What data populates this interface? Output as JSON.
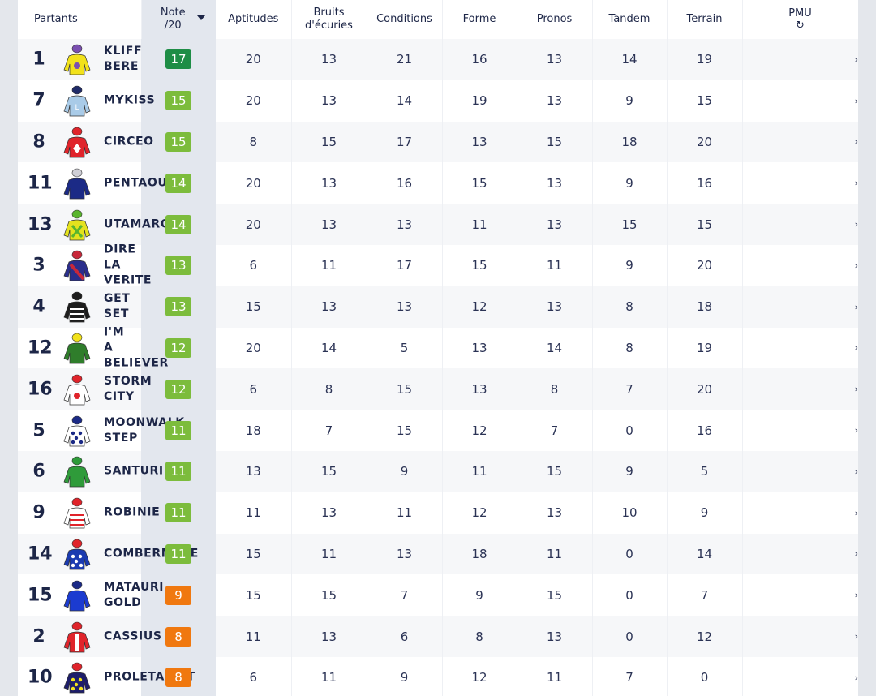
{
  "headers": {
    "partants": "Partants",
    "note": "Note",
    "note_scale": "/20",
    "aptitudes": "Aptitudes",
    "bruits_l1": "Bruits",
    "bruits_l2": "d'écuries",
    "conditions": "Conditions",
    "forme": "Forme",
    "pronos": "Pronos",
    "tandem": "Tandem",
    "terrain": "Terrain",
    "pmu": "PMU",
    "pmu_icon": "↻"
  },
  "arrow_glyph": "›",
  "colors": {
    "dark_green": "#1e8d46",
    "green": "#7cbc3c",
    "orange": "#f0780f",
    "text": "#1d2647"
  },
  "rows": [
    {
      "num": "1",
      "name": "KLIFF BERE",
      "note": "17",
      "color": "#1e8d46",
      "aptitudes": "20",
      "bruits": "13",
      "conditions": "21",
      "forme": "16",
      "pronos": "13",
      "tandem": "14",
      "terrain": "19",
      "silk": {
        "body": "#f2e21b",
        "cap": "#7a4fb0",
        "detail": "#7a4fb0",
        "pattern": "dot"
      }
    },
    {
      "num": "7",
      "name": "MYKISS",
      "note": "15",
      "color": "#7cbc3c",
      "aptitudes": "20",
      "bruits": "13",
      "conditions": "14",
      "forme": "19",
      "pronos": "13",
      "tandem": "9",
      "terrain": "15",
      "silk": {
        "body": "#a9cbe8",
        "cap": "#1f2a68",
        "detail": "#ffffff",
        "pattern": "letter"
      }
    },
    {
      "num": "8",
      "name": "CIRCEO",
      "note": "15",
      "color": "#7cbc3c",
      "aptitudes": "8",
      "bruits": "15",
      "conditions": "17",
      "forme": "13",
      "pronos": "15",
      "tandem": "18",
      "terrain": "20",
      "silk": {
        "body": "#e0242b",
        "cap": "#e0242b",
        "detail": "#ffffff",
        "pattern": "diamond"
      }
    },
    {
      "num": "11",
      "name": "PENTAOUR",
      "note": "14",
      "color": "#7cbc3c",
      "aptitudes": "20",
      "bruits": "13",
      "conditions": "16",
      "forme": "15",
      "pronos": "13",
      "tandem": "9",
      "terrain": "16",
      "silk": {
        "body": "#1b2a86",
        "cap": "#cfcfd6",
        "detail": "#1b2a86",
        "pattern": "plain"
      }
    },
    {
      "num": "13",
      "name": "UTAMARO",
      "note": "14",
      "color": "#7cbc3c",
      "aptitudes": "20",
      "bruits": "13",
      "conditions": "13",
      "forme": "11",
      "pronos": "13",
      "tandem": "15",
      "terrain": "15",
      "silk": {
        "body": "#e4e21e",
        "cap": "#5ab52e",
        "detail": "#5ab52e",
        "pattern": "cross"
      }
    },
    {
      "num": "3",
      "name": "DIRE LA VERITE",
      "note": "13",
      "color": "#7cbc3c",
      "aptitudes": "6",
      "bruits": "11",
      "conditions": "17",
      "forme": "15",
      "pronos": "11",
      "tandem": "9",
      "terrain": "20",
      "silk": {
        "body": "#2a2e8c",
        "cap": "#c8283a",
        "detail": "#c8283a",
        "pattern": "sash"
      }
    },
    {
      "num": "4",
      "name": "GET SET",
      "note": "13",
      "color": "#7cbc3c",
      "aptitudes": "15",
      "bruits": "13",
      "conditions": "13",
      "forme": "12",
      "pronos": "13",
      "tandem": "8",
      "terrain": "18",
      "silk": {
        "body": "#1d1d1d",
        "cap": "#1d1d1d",
        "detail": "#ffffff",
        "pattern": "stripes"
      }
    },
    {
      "num": "12",
      "name": "I'M A BELIEVER",
      "note": "12",
      "color": "#7cbc3c",
      "aptitudes": "20",
      "bruits": "14",
      "conditions": "5",
      "forme": "13",
      "pronos": "14",
      "tandem": "8",
      "terrain": "19",
      "silk": {
        "body": "#2f7d2b",
        "cap": "#f2e21b",
        "detail": "#f2e21b",
        "pattern": "plain"
      }
    },
    {
      "num": "16",
      "name": "STORM CITY",
      "note": "12",
      "color": "#7cbc3c",
      "aptitudes": "6",
      "bruits": "8",
      "conditions": "15",
      "forme": "13",
      "pronos": "8",
      "tandem": "7",
      "terrain": "20",
      "silk": {
        "body": "#ffffff",
        "cap": "#e0242b",
        "detail": "#e0242b",
        "pattern": "dot"
      }
    },
    {
      "num": "5",
      "name": "MOONWALK STEP",
      "note": "11",
      "color": "#7cbc3c",
      "aptitudes": "18",
      "bruits": "7",
      "conditions": "15",
      "forme": "12",
      "pronos": "7",
      "tandem": "0",
      "terrain": "16",
      "silk": {
        "body": "#ffffff",
        "cap": "#1b2a86",
        "detail": "#1b2a86",
        "pattern": "stars"
      }
    },
    {
      "num": "6",
      "name": "SANTURIN",
      "note": "11",
      "color": "#7cbc3c",
      "aptitudes": "13",
      "bruits": "15",
      "conditions": "9",
      "forme": "11",
      "pronos": "15",
      "tandem": "9",
      "terrain": "5",
      "silk": {
        "body": "#2f9b3a",
        "cap": "#2f9b3a",
        "detail": "#f2e21b",
        "pattern": "plain"
      }
    },
    {
      "num": "9",
      "name": "ROBINIE",
      "note": "11",
      "color": "#7cbc3c",
      "aptitudes": "11",
      "bruits": "13",
      "conditions": "11",
      "forme": "12",
      "pronos": "13",
      "tandem": "10",
      "terrain": "9",
      "silk": {
        "body": "#ffffff",
        "cap": "#e0242b",
        "detail": "#e0242b",
        "pattern": "stripes"
      }
    },
    {
      "num": "14",
      "name": "COMBERMERE",
      "note": "11",
      "color": "#7cbc3c",
      "aptitudes": "15",
      "bruits": "11",
      "conditions": "13",
      "forme": "18",
      "pronos": "11",
      "tandem": "0",
      "terrain": "14",
      "silk": {
        "body": "#1b3bb0",
        "cap": "#e0242b",
        "detail": "#ffffff",
        "pattern": "stars"
      }
    },
    {
      "num": "15",
      "name": "MATAURI GOLD",
      "note": "9",
      "color": "#f0780f",
      "aptitudes": "15",
      "bruits": "15",
      "conditions": "7",
      "forme": "9",
      "pronos": "15",
      "tandem": "0",
      "terrain": "7",
      "silk": {
        "body": "#1b3bd0",
        "cap": "#1b2a86",
        "detail": "#1b3bd0",
        "pattern": "plain"
      }
    },
    {
      "num": "2",
      "name": "CASSIUS",
      "note": "8",
      "color": "#f0780f",
      "aptitudes": "11",
      "bruits": "13",
      "conditions": "6",
      "forme": "8",
      "pronos": "13",
      "tandem": "0",
      "terrain": "12",
      "silk": {
        "body": "#e0242b",
        "cap": "#e0242b",
        "detail": "#ffffff",
        "pattern": "vstripe"
      }
    },
    {
      "num": "10",
      "name": "PROLETARIAT",
      "note": "8",
      "color": "#f0780f",
      "aptitudes": "6",
      "bruits": "11",
      "conditions": "9",
      "forme": "12",
      "pronos": "11",
      "tandem": "7",
      "terrain": "0",
      "silk": {
        "body": "#1d1d6a",
        "cap": "#e0242b",
        "detail": "#f2e21b",
        "pattern": "stars"
      }
    }
  ]
}
